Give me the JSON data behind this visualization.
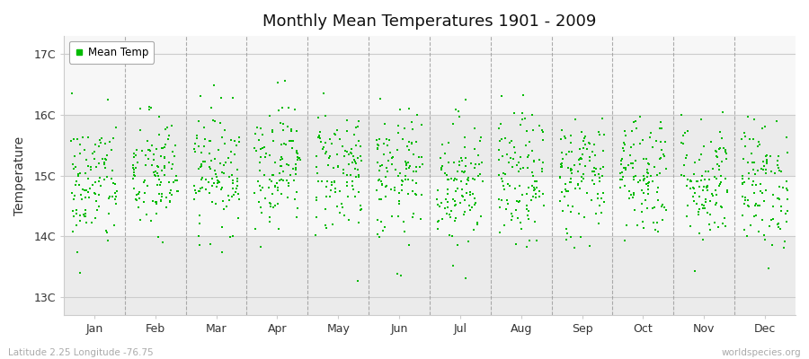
{
  "title": "Monthly Mean Temperatures 1901 - 2009",
  "ylabel": "Temperature",
  "xlabel_labels": [
    "Jan",
    "Feb",
    "Mar",
    "Apr",
    "May",
    "Jun",
    "Jul",
    "Aug",
    "Sep",
    "Oct",
    "Nov",
    "Dec"
  ],
  "ytick_labels": [
    "13C",
    "14C",
    "15C",
    "16C",
    "17C"
  ],
  "ytick_values": [
    13,
    14,
    15,
    16,
    17
  ],
  "ylim": [
    12.7,
    17.3
  ],
  "footer_left": "Latitude 2.25 Longitude -76.75",
  "footer_right": "worldspecies.org",
  "legend_label": "Mean Temp",
  "dot_color": "#00bb00",
  "bg_color": "#ffffff",
  "plot_bg_color": "#ffffff",
  "band_color_dark": "#ebebeb",
  "band_color_light": "#f7f7f7",
  "grid_color": "#cccccc",
  "vline_color": "#999999",
  "seed": 42,
  "n_years": 109,
  "month_means": [
    14.85,
    15.0,
    15.1,
    15.2,
    15.1,
    14.95,
    14.9,
    14.9,
    15.0,
    15.05,
    14.9,
    14.85
  ],
  "month_stds": [
    0.55,
    0.52,
    0.5,
    0.52,
    0.53,
    0.55,
    0.55,
    0.55,
    0.52,
    0.52,
    0.52,
    0.53
  ]
}
